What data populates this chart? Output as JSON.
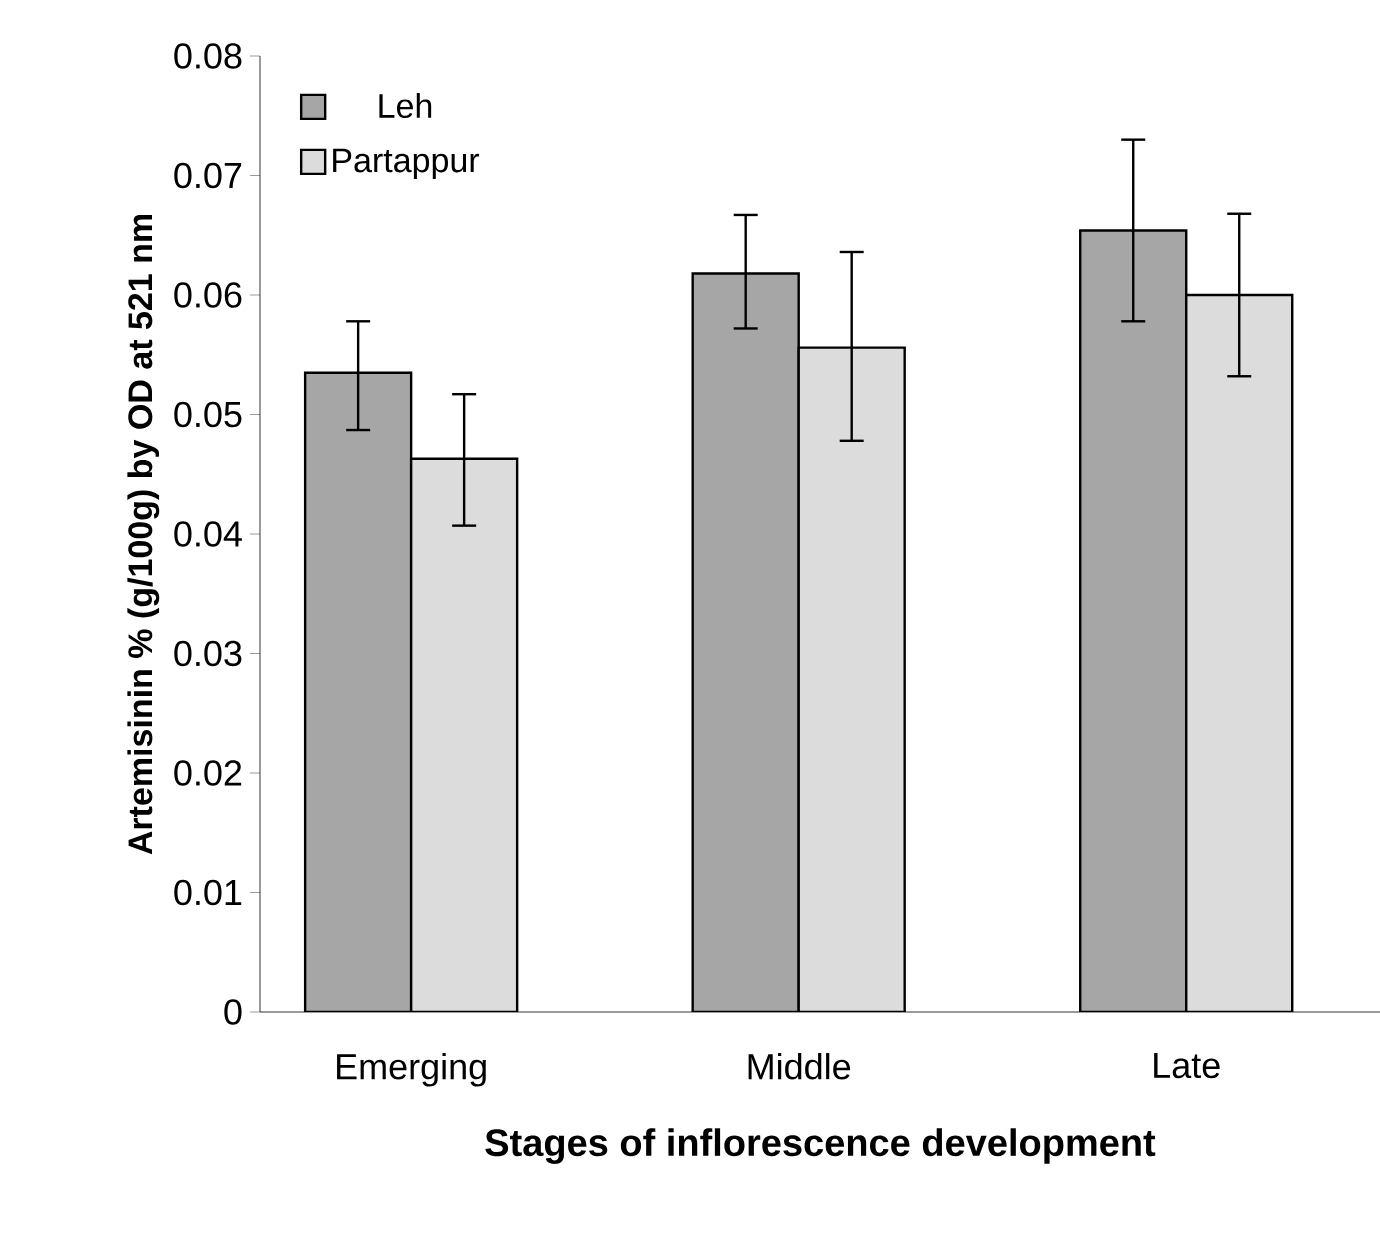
{
  "chart_data": {
    "type": "bar",
    "xlabel": "Stages of inflorescence development",
    "ylabel": "Artemisinin % (g/100g) by OD at 521 nm",
    "categories": [
      "Emerging",
      "Middle",
      "Late"
    ],
    "series": [
      {
        "name": "Leh",
        "color": "#a6a6a6",
        "values": [
          0.0535,
          0.0618,
          0.0654
        ],
        "errors": [
          [
            0.0487,
            0.0578
          ],
          [
            0.0572,
            0.0667
          ],
          [
            0.0578,
            0.073
          ]
        ]
      },
      {
        "name": "Partappur",
        "color": "#dcdcdc",
        "values": [
          0.0463,
          0.0556,
          0.06
        ],
        "errors": [
          [
            0.0407,
            0.0517
          ],
          [
            0.0478,
            0.0636
          ],
          [
            0.0532,
            0.0668
          ]
        ]
      }
    ],
    "ylim": [
      0,
      0.08
    ],
    "yticks": [
      0,
      0.01,
      0.02,
      0.03,
      0.04,
      0.05,
      0.06,
      0.07,
      0.08
    ],
    "legend": "top left",
    "grid": false
  }
}
